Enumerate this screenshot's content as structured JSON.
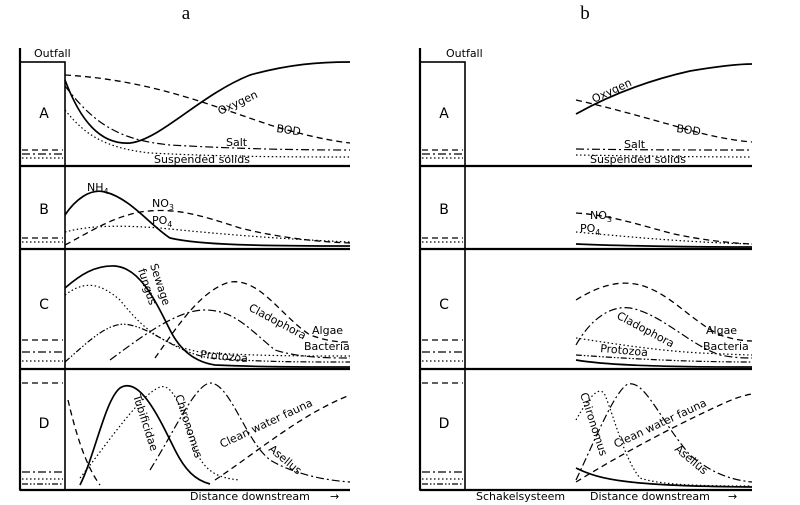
{
  "panels": [
    {
      "id": "a",
      "label": "a"
    },
    {
      "id": "b",
      "label": "b"
    }
  ],
  "outfall_label": "Outfall",
  "rows": [
    "A",
    "B",
    "C",
    "D"
  ],
  "x_axis_label": "Distance  downstream",
  "footer_b": "Schakelsysteem",
  "curve_labels": {
    "oxygen": "Oxygen",
    "bod": "BOD",
    "salt": "Salt",
    "suspended": "Suspended solids",
    "nh4_base": "NH",
    "nh4_sub": "4",
    "no3_base": "NO",
    "no3_sub": "3",
    "po4_base": "PO",
    "po4_sub": "4",
    "sewage": "Sewage",
    "fungus": "fungus",
    "cladophora": "Cladophora",
    "algae": "Algae",
    "bacteria": "Bacteria",
    "protozoa": "Protozoa",
    "tubificidae": "Tubificidae",
    "chironomus": "Chironomus",
    "clean_water_fauna": "Clean  water  fauna",
    "asellus": "Asellus"
  },
  "arrow_glyph": "→"
}
